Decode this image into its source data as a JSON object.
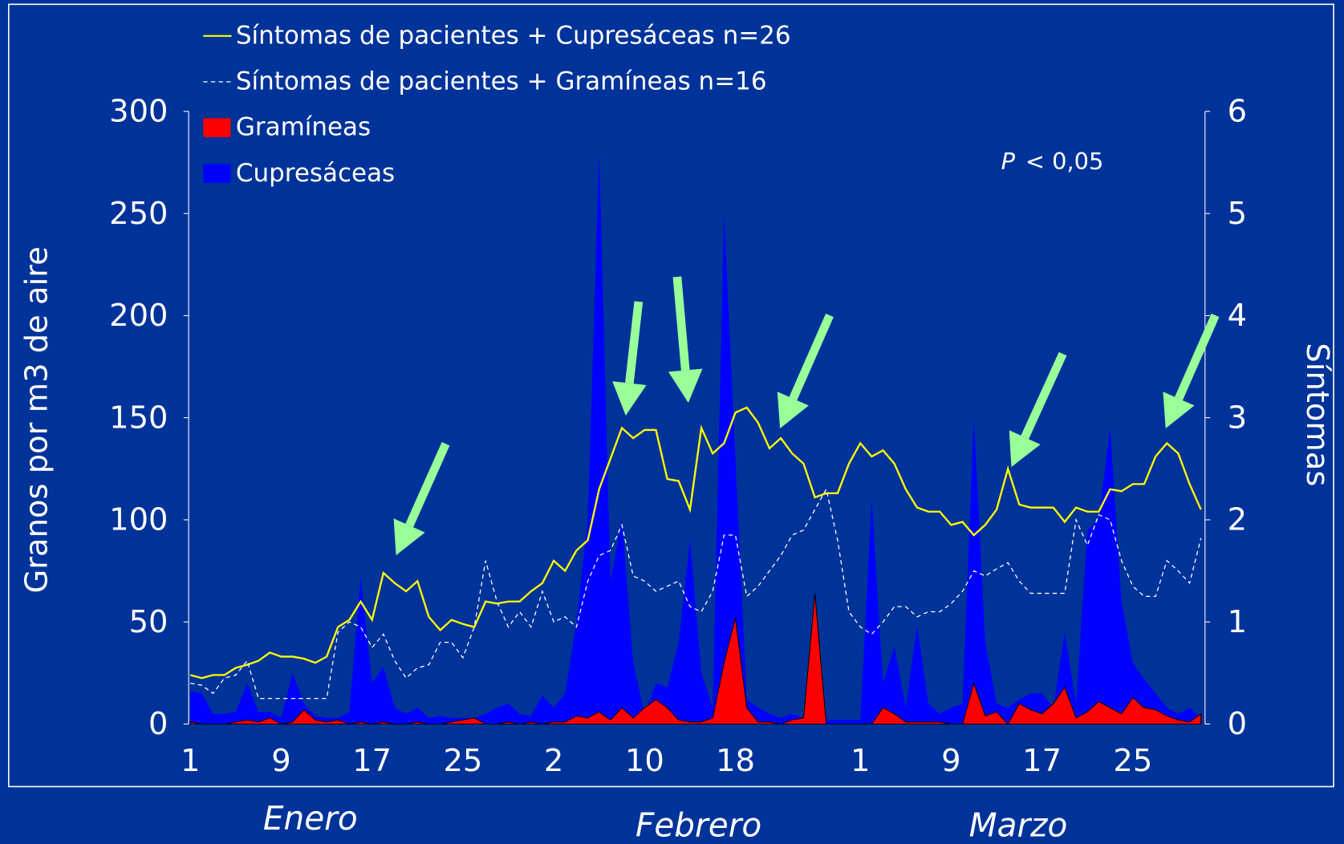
{
  "chart_data": {
    "type": "line",
    "categories": [
      "1",
      null,
      null,
      null,
      null,
      null,
      null,
      null,
      "9",
      null,
      null,
      null,
      null,
      null,
      null,
      null,
      "17",
      null,
      null,
      null,
      null,
      null,
      null,
      null,
      "25",
      null,
      null,
      null,
      null,
      null,
      null,
      null,
      "2",
      null,
      null,
      null,
      null,
      null,
      null,
      null,
      "10",
      null,
      null,
      null,
      null,
      null,
      null,
      null,
      "18",
      null,
      null,
      null,
      null,
      null,
      null,
      null,
      null,
      null,
      null,
      "1",
      null,
      null,
      null,
      null,
      null,
      null,
      null,
      "9",
      null,
      null,
      null,
      null,
      null,
      null,
      null,
      "17",
      null,
      null,
      null,
      null,
      null,
      null,
      null,
      "25",
      null,
      null,
      null,
      null,
      null,
      null
    ],
    "month_labels": [
      "Enero",
      "Febrero",
      "Marzo"
    ],
    "ylabel": "Granos por m3 de aire",
    "y2label": "Síntomas",
    "annotation": {
      "variable": "P",
      "text": "< 0,05"
    },
    "ylim": [
      0,
      300
    ],
    "yticks": [
      0,
      50,
      100,
      150,
      200,
      250,
      300
    ],
    "y2lim": [
      0,
      6
    ],
    "y2ticks": [
      0,
      1,
      2,
      3,
      4,
      5,
      6
    ],
    "series": [
      {
        "name": "Síntomas de pacientes + Cupresáceas n=26",
        "style": "line",
        "axis": "y2",
        "color": "#ffff00",
        "values": [
          0.48,
          0.45,
          0.48,
          0.48,
          0.55,
          0.58,
          0.62,
          0.7,
          0.66,
          0.66,
          0.64,
          0.6,
          0.66,
          0.95,
          1.02,
          1.2,
          1.02,
          1.48,
          1.38,
          1.3,
          1.4,
          1.05,
          0.92,
          1.02,
          0.98,
          0.95,
          1.2,
          1.18,
          1.2,
          1.2,
          1.3,
          1.38,
          1.6,
          1.5,
          1.7,
          1.8,
          2.3,
          2.6,
          2.9,
          2.8,
          2.88,
          2.88,
          2.4,
          2.38,
          2.1,
          2.9,
          2.65,
          2.75,
          3.05,
          3.1,
          2.95,
          2.7,
          2.8,
          2.65,
          2.55,
          2.22,
          2.26,
          2.26,
          2.55,
          2.75,
          2.62,
          2.68,
          2.55,
          2.3,
          2.12,
          2.08,
          2.08,
          1.95,
          1.98,
          1.85,
          1.95,
          2.1,
          2.5,
          2.15,
          2.12,
          2.12,
          2.12,
          1.98,
          2.12,
          2.08,
          2.08,
          2.3,
          2.28,
          2.35,
          2.35,
          2.62,
          2.75,
          2.65,
          2.35,
          2.1
        ]
      },
      {
        "name": "Síntomas de pacientes + Gramíneas n=16",
        "style": "dashed",
        "axis": "y2",
        "color": "#ffffff",
        "values": [
          0.4,
          0.38,
          0.3,
          0.45,
          0.48,
          0.62,
          0.25,
          0.25,
          0.25,
          0.25,
          0.25,
          0.25,
          0.25,
          0.9,
          1.0,
          0.95,
          0.75,
          0.88,
          0.62,
          0.45,
          0.55,
          0.58,
          0.8,
          0.8,
          0.65,
          0.95,
          1.6,
          1.2,
          0.95,
          1.1,
          0.95,
          1.3,
          1.0,
          1.05,
          0.95,
          1.4,
          1.65,
          1.7,
          1.95,
          1.45,
          1.4,
          1.3,
          1.35,
          1.4,
          1.15,
          1.1,
          1.3,
          1.85,
          1.85,
          1.25,
          1.35,
          1.5,
          1.65,
          1.85,
          1.9,
          2.1,
          2.3,
          1.8,
          1.1,
          0.95,
          0.88,
          1.0,
          1.15,
          1.15,
          1.05,
          1.1,
          1.1,
          1.18,
          1.3,
          1.5,
          1.45,
          1.52,
          1.58,
          1.4,
          1.28,
          1.28,
          1.28,
          1.28,
          2.0,
          1.75,
          2.05,
          2.0,
          1.6,
          1.35,
          1.25,
          1.25,
          1.6,
          1.5,
          1.38,
          1.82
        ]
      },
      {
        "name": "Gramíneas",
        "style": "area",
        "color": "#ff0000",
        "values": [
          1,
          0,
          0,
          0,
          1,
          2,
          1,
          3,
          0,
          1,
          7,
          2,
          1,
          2,
          0,
          1,
          0,
          1,
          0,
          0,
          1,
          0,
          0,
          1,
          2,
          3,
          0,
          0,
          1,
          0,
          1,
          0,
          1,
          1,
          4,
          3,
          6,
          2,
          8,
          3,
          8,
          12,
          8,
          2,
          1,
          1,
          3,
          30,
          52,
          8,
          1,
          1,
          0,
          2,
          3,
          64,
          0,
          0,
          0,
          0,
          0,
          8,
          5,
          1,
          1,
          1,
          1,
          0,
          0,
          20,
          4,
          6,
          0,
          10,
          7,
          5,
          10,
          18,
          3,
          6,
          11,
          8,
          5,
          13,
          8,
          7,
          4,
          2,
          1,
          5
        ]
      },
      {
        "name": "Cupresáceas",
        "style": "area",
        "color": "#0000ff",
        "values": [
          16,
          15,
          5,
          5,
          6,
          20,
          6,
          6,
          3,
          25,
          10,
          4,
          3,
          3,
          6,
          72,
          20,
          28,
          8,
          5,
          8,
          3,
          4,
          3,
          3,
          3,
          5,
          8,
          10,
          5,
          4,
          14,
          8,
          15,
          50,
          100,
          280,
          70,
          100,
          30,
          5,
          20,
          18,
          40,
          90,
          25,
          8,
          250,
          130,
          12,
          8,
          5,
          3,
          5,
          3,
          2,
          2,
          2,
          2,
          2,
          110,
          20,
          38,
          8,
          48,
          10,
          5,
          8,
          10,
          150,
          40,
          10,
          8,
          12,
          15,
          15,
          8,
          45,
          10,
          95,
          100,
          145,
          60,
          30,
          22,
          15,
          8,
          5,
          8,
          3
        ]
      }
    ]
  }
}
